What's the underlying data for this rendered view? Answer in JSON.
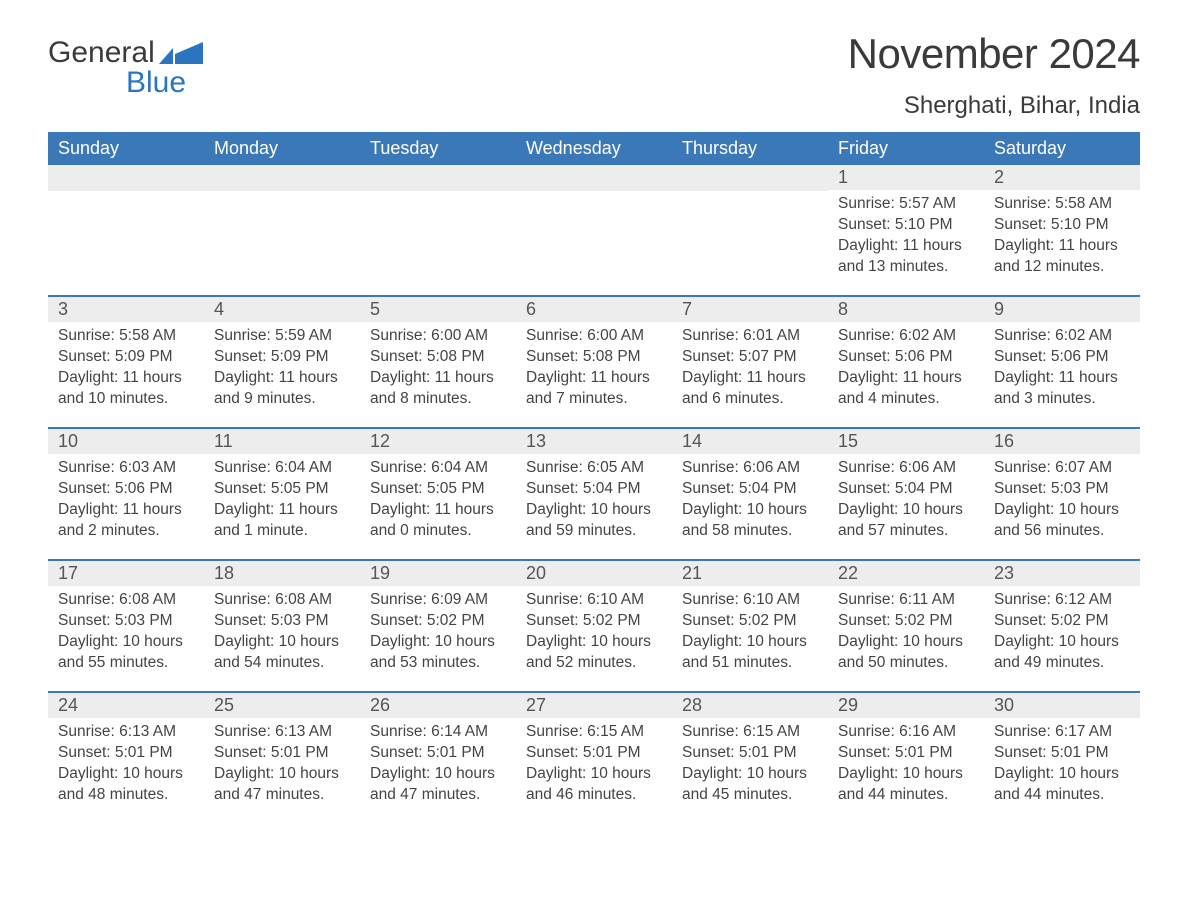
{
  "logo": {
    "word1": "General",
    "word2": "Blue",
    "brand_color": "#2a74c0",
    "text_color": "#3a3a3a"
  },
  "title": "November 2024",
  "location": "Sherghati, Bihar, India",
  "colors": {
    "header_bg": "#3b78b8",
    "header_text": "#ffffff",
    "daynum_bg": "#ededed",
    "daynum_text": "#555555",
    "body_text": "#444444",
    "row_border": "#3b78b8",
    "page_bg": "#ffffff"
  },
  "typography": {
    "title_fontsize": 42,
    "location_fontsize": 24,
    "header_fontsize": 18,
    "body_fontsize": 15.5
  },
  "day_names": [
    "Sunday",
    "Monday",
    "Tuesday",
    "Wednesday",
    "Thursday",
    "Friday",
    "Saturday"
  ],
  "weeks": [
    [
      null,
      null,
      null,
      null,
      null,
      {
        "n": "1",
        "sunrise": "5:57 AM",
        "sunset": "5:10 PM",
        "daylight": "11 hours and 13 minutes."
      },
      {
        "n": "2",
        "sunrise": "5:58 AM",
        "sunset": "5:10 PM",
        "daylight": "11 hours and 12 minutes."
      }
    ],
    [
      {
        "n": "3",
        "sunrise": "5:58 AM",
        "sunset": "5:09 PM",
        "daylight": "11 hours and 10 minutes."
      },
      {
        "n": "4",
        "sunrise": "5:59 AM",
        "sunset": "5:09 PM",
        "daylight": "11 hours and 9 minutes."
      },
      {
        "n": "5",
        "sunrise": "6:00 AM",
        "sunset": "5:08 PM",
        "daylight": "11 hours and 8 minutes."
      },
      {
        "n": "6",
        "sunrise": "6:00 AM",
        "sunset": "5:08 PM",
        "daylight": "11 hours and 7 minutes."
      },
      {
        "n": "7",
        "sunrise": "6:01 AM",
        "sunset": "5:07 PM",
        "daylight": "11 hours and 6 minutes."
      },
      {
        "n": "8",
        "sunrise": "6:02 AM",
        "sunset": "5:06 PM",
        "daylight": "11 hours and 4 minutes."
      },
      {
        "n": "9",
        "sunrise": "6:02 AM",
        "sunset": "5:06 PM",
        "daylight": "11 hours and 3 minutes."
      }
    ],
    [
      {
        "n": "10",
        "sunrise": "6:03 AM",
        "sunset": "5:06 PM",
        "daylight": "11 hours and 2 minutes."
      },
      {
        "n": "11",
        "sunrise": "6:04 AM",
        "sunset": "5:05 PM",
        "daylight": "11 hours and 1 minute."
      },
      {
        "n": "12",
        "sunrise": "6:04 AM",
        "sunset": "5:05 PM",
        "daylight": "11 hours and 0 minutes."
      },
      {
        "n": "13",
        "sunrise": "6:05 AM",
        "sunset": "5:04 PM",
        "daylight": "10 hours and 59 minutes."
      },
      {
        "n": "14",
        "sunrise": "6:06 AM",
        "sunset": "5:04 PM",
        "daylight": "10 hours and 58 minutes."
      },
      {
        "n": "15",
        "sunrise": "6:06 AM",
        "sunset": "5:04 PM",
        "daylight": "10 hours and 57 minutes."
      },
      {
        "n": "16",
        "sunrise": "6:07 AM",
        "sunset": "5:03 PM",
        "daylight": "10 hours and 56 minutes."
      }
    ],
    [
      {
        "n": "17",
        "sunrise": "6:08 AM",
        "sunset": "5:03 PM",
        "daylight": "10 hours and 55 minutes."
      },
      {
        "n": "18",
        "sunrise": "6:08 AM",
        "sunset": "5:03 PM",
        "daylight": "10 hours and 54 minutes."
      },
      {
        "n": "19",
        "sunrise": "6:09 AM",
        "sunset": "5:02 PM",
        "daylight": "10 hours and 53 minutes."
      },
      {
        "n": "20",
        "sunrise": "6:10 AM",
        "sunset": "5:02 PM",
        "daylight": "10 hours and 52 minutes."
      },
      {
        "n": "21",
        "sunrise": "6:10 AM",
        "sunset": "5:02 PM",
        "daylight": "10 hours and 51 minutes."
      },
      {
        "n": "22",
        "sunrise": "6:11 AM",
        "sunset": "5:02 PM",
        "daylight": "10 hours and 50 minutes."
      },
      {
        "n": "23",
        "sunrise": "6:12 AM",
        "sunset": "5:02 PM",
        "daylight": "10 hours and 49 minutes."
      }
    ],
    [
      {
        "n": "24",
        "sunrise": "6:13 AM",
        "sunset": "5:01 PM",
        "daylight": "10 hours and 48 minutes."
      },
      {
        "n": "25",
        "sunrise": "6:13 AM",
        "sunset": "5:01 PM",
        "daylight": "10 hours and 47 minutes."
      },
      {
        "n": "26",
        "sunrise": "6:14 AM",
        "sunset": "5:01 PM",
        "daylight": "10 hours and 47 minutes."
      },
      {
        "n": "27",
        "sunrise": "6:15 AM",
        "sunset": "5:01 PM",
        "daylight": "10 hours and 46 minutes."
      },
      {
        "n": "28",
        "sunrise": "6:15 AM",
        "sunset": "5:01 PM",
        "daylight": "10 hours and 45 minutes."
      },
      {
        "n": "29",
        "sunrise": "6:16 AM",
        "sunset": "5:01 PM",
        "daylight": "10 hours and 44 minutes."
      },
      {
        "n": "30",
        "sunrise": "6:17 AM",
        "sunset": "5:01 PM",
        "daylight": "10 hours and 44 minutes."
      }
    ]
  ],
  "labels": {
    "sunrise": "Sunrise: ",
    "sunset": "Sunset: ",
    "daylight": "Daylight: "
  }
}
